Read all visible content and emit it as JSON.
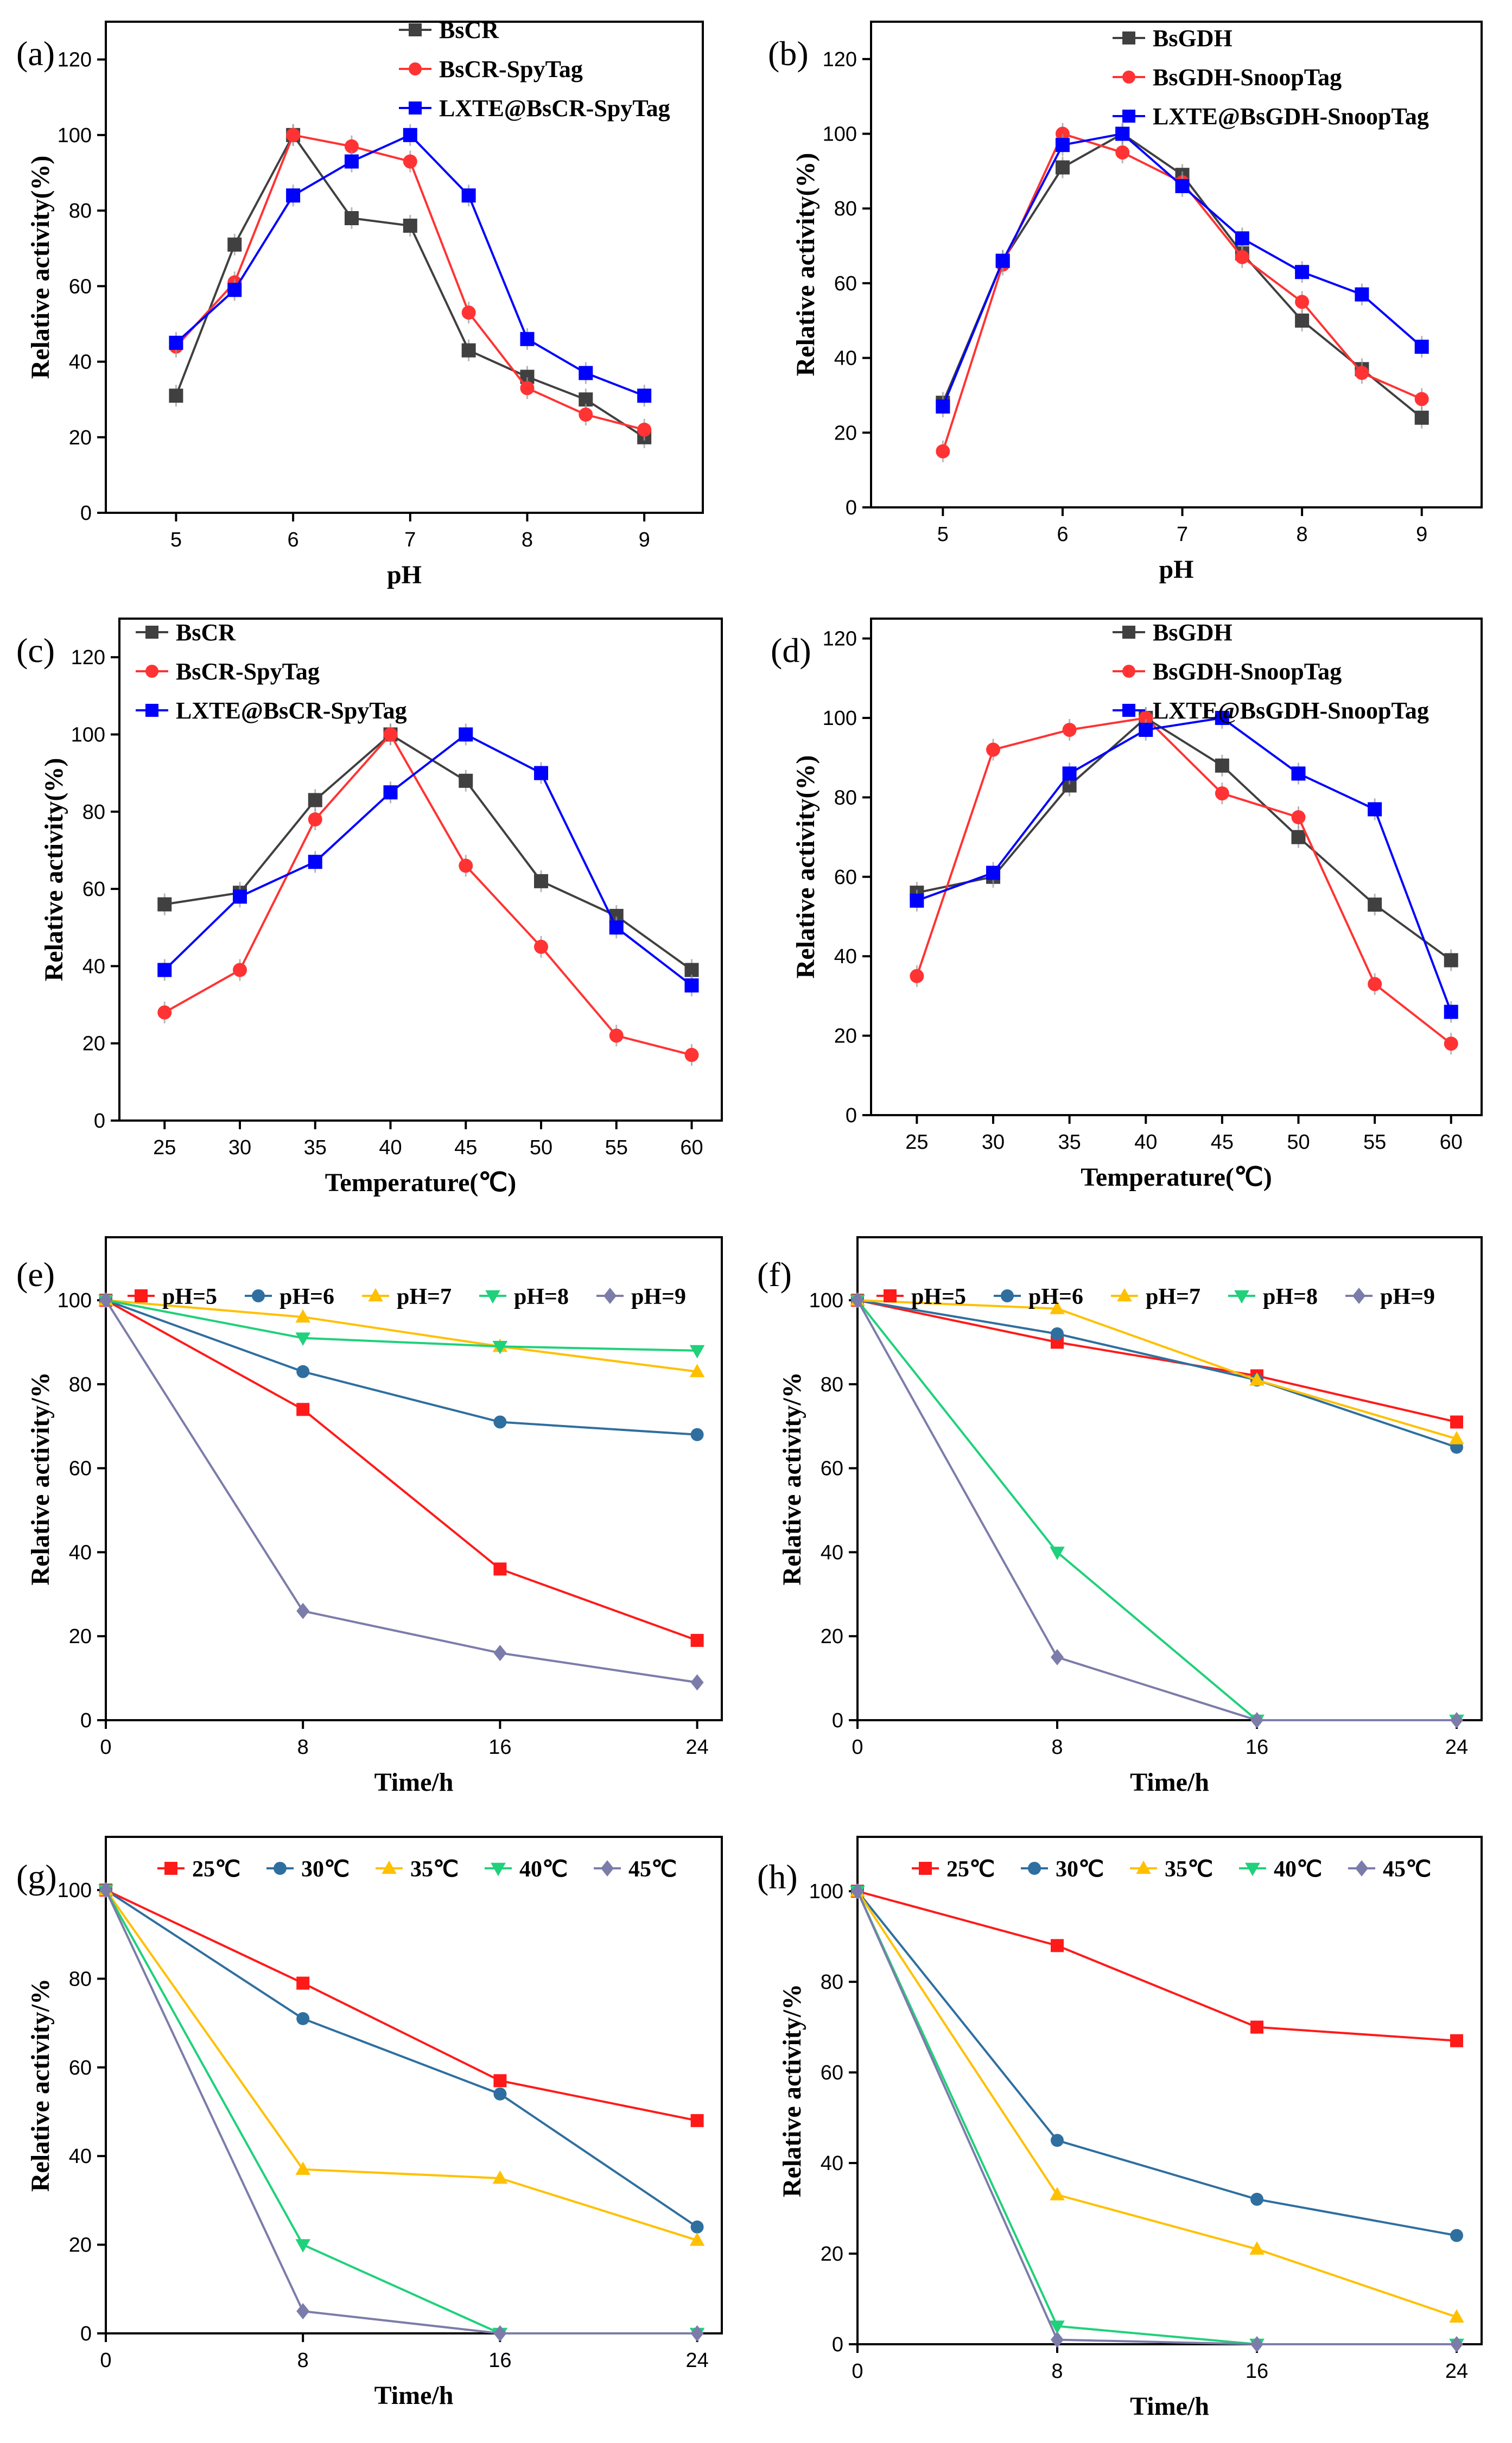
{
  "chart_data": [
    {
      "panel": "(a)",
      "type": "line",
      "xlabel": "pH",
      "ylabel": "Relative activity(%)",
      "xlim": [
        4.4,
        9.5
      ],
      "ylim": [
        0,
        130
      ],
      "xticks": [
        5,
        6,
        7,
        8,
        9
      ],
      "yticks": [
        0,
        20,
        40,
        60,
        80,
        100,
        120
      ],
      "x": [
        5,
        5.5,
        6,
        6.5,
        7,
        7.5,
        8,
        8.5,
        9
      ],
      "legend_pos": "top-right",
      "series": [
        {
          "name": "BsCR",
          "color": "#404040",
          "marker": "square",
          "values": [
            31,
            71,
            100,
            78,
            76,
            43,
            36,
            30,
            20
          ]
        },
        {
          "name": "BsCR-SpyTag",
          "color": "#ff3333",
          "marker": "circle",
          "values": [
            44,
            61,
            100,
            97,
            93,
            53,
            33,
            26,
            22
          ]
        },
        {
          "name": "LXTE@BsCR-SpyTag",
          "color": "#0000ff",
          "marker": "square",
          "values": [
            45,
            59,
            84,
            93,
            100,
            84,
            46,
            37,
            31
          ]
        }
      ]
    },
    {
      "panel": "(b)",
      "type": "line",
      "xlabel": "pH",
      "ylabel": "Relative activity(%)",
      "xlim": [
        4.4,
        9.5
      ],
      "ylim": [
        0,
        130
      ],
      "xticks": [
        5,
        6,
        7,
        8,
        9
      ],
      "yticks": [
        0,
        20,
        40,
        60,
        80,
        100,
        120
      ],
      "x": [
        5,
        5.5,
        6,
        6.5,
        7,
        7.5,
        8,
        8.5,
        9
      ],
      "legend_pos": "top-right",
      "series": [
        {
          "name": "BsGDH",
          "color": "#404040",
          "marker": "square",
          "values": [
            28,
            66,
            91,
            100,
            89,
            68,
            50,
            37,
            24
          ]
        },
        {
          "name": "BsGDH-SnoopTag",
          "color": "#ff3333",
          "marker": "circle",
          "values": [
            15,
            65,
            100,
            95,
            87,
            67,
            55,
            36,
            29
          ]
        },
        {
          "name": "LXTE@BsGDH-SnoopTag",
          "color": "#0000ff",
          "marker": "square",
          "values": [
            27,
            66,
            97,
            100,
            86,
            72,
            63,
            57,
            43
          ]
        }
      ]
    },
    {
      "panel": "(c)",
      "type": "line",
      "xlabel": "Temperature(℃)",
      "ylabel": "Relative activity(%)",
      "xlim": [
        22,
        62
      ],
      "ylim": [
        0,
        130
      ],
      "xticks": [
        25,
        30,
        35,
        40,
        45,
        50,
        55,
        60
      ],
      "yticks": [
        0,
        20,
        40,
        60,
        80,
        100,
        120
      ],
      "x": [
        25,
        30,
        35,
        40,
        45,
        50,
        55,
        60
      ],
      "legend_pos": "top-left",
      "series": [
        {
          "name": "BsCR",
          "color": "#404040",
          "marker": "square",
          "values": [
            56,
            59,
            83,
            100,
            88,
            62,
            53,
            39
          ]
        },
        {
          "name": "BsCR-SpyTag",
          "color": "#ff3333",
          "marker": "circle",
          "values": [
            28,
            39,
            78,
            100,
            66,
            45,
            22,
            17
          ]
        },
        {
          "name": "LXTE@BsCR-SpyTag",
          "color": "#0000ff",
          "marker": "square",
          "values": [
            39,
            58,
            67,
            85,
            100,
            90,
            50,
            35
          ]
        }
      ]
    },
    {
      "panel": "(d)",
      "type": "line",
      "xlabel": "Temperature(℃)",
      "ylabel": "Relative activity(%)",
      "xlim": [
        22,
        62
      ],
      "ylim": [
        0,
        125
      ],
      "xticks": [
        25,
        30,
        35,
        40,
        45,
        50,
        55,
        60
      ],
      "yticks": [
        0,
        20,
        40,
        60,
        80,
        100,
        120
      ],
      "x": [
        25,
        30,
        35,
        40,
        45,
        50,
        55,
        60
      ],
      "legend_pos": "top-right",
      "series": [
        {
          "name": "BsGDH",
          "color": "#404040",
          "marker": "square",
          "values": [
            56,
            60,
            83,
            100,
            88,
            70,
            53,
            39
          ]
        },
        {
          "name": "BsGDH-SnoopTag",
          "color": "#ff3333",
          "marker": "circle",
          "values": [
            35,
            92,
            97,
            100,
            81,
            75,
            33,
            18
          ]
        },
        {
          "name": "LXTE@BsGDH-SnoopTag",
          "color": "#0000ff",
          "marker": "square",
          "values": [
            54,
            61,
            86,
            97,
            100,
            86,
            77,
            26
          ]
        }
      ]
    },
    {
      "panel": "(e)",
      "type": "line",
      "xlabel": "Time/h",
      "ylabel": "Relative activity/%",
      "xlim": [
        0,
        25
      ],
      "ylim": [
        0,
        115
      ],
      "xticks": [
        0,
        8,
        16,
        24
      ],
      "yticks": [
        0,
        20,
        40,
        60,
        80,
        100
      ],
      "x": [
        0,
        8,
        16,
        24
      ],
      "legend_pos": "top",
      "series": [
        {
          "name": "pH=5",
          "color": "#ff1a1a",
          "marker": "square",
          "values": [
            100,
            74,
            36,
            19
          ]
        },
        {
          "name": "pH=6",
          "color": "#2f6f9f",
          "marker": "circle",
          "values": [
            100,
            83,
            71,
            68
          ]
        },
        {
          "name": "pH=7",
          "color": "#ffc000",
          "marker": "triangle-up",
          "values": [
            100,
            96,
            89,
            83
          ]
        },
        {
          "name": "pH=8",
          "color": "#1fd17a",
          "marker": "triangle-down",
          "values": [
            100,
            91,
            89,
            88
          ]
        },
        {
          "name": "pH=9",
          "color": "#7c7caa",
          "marker": "diamond",
          "values": [
            100,
            26,
            16,
            9
          ]
        }
      ]
    },
    {
      "panel": "(f)",
      "type": "line",
      "xlabel": "Time/h",
      "ylabel": "Relative activity/%",
      "xlim": [
        0,
        25
      ],
      "ylim": [
        0,
        115
      ],
      "xticks": [
        0,
        8,
        16,
        24
      ],
      "yticks": [
        0,
        20,
        40,
        60,
        80,
        100
      ],
      "x": [
        0,
        8,
        16,
        24
      ],
      "legend_pos": "top",
      "series": [
        {
          "name": "pH=5",
          "color": "#ff1a1a",
          "marker": "square",
          "values": [
            100,
            90,
            82,
            71
          ]
        },
        {
          "name": "pH=6",
          "color": "#2f6f9f",
          "marker": "circle",
          "values": [
            100,
            92,
            81,
            65
          ]
        },
        {
          "name": "pH=7",
          "color": "#ffc000",
          "marker": "triangle-up",
          "values": [
            100,
            98,
            81,
            67
          ]
        },
        {
          "name": "pH=8",
          "color": "#1fd17a",
          "marker": "triangle-down",
          "values": [
            100,
            40,
            0,
            0
          ]
        },
        {
          "name": "pH=9",
          "color": "#7c7caa",
          "marker": "diamond",
          "values": [
            100,
            15,
            0,
            0
          ]
        }
      ]
    },
    {
      "panel": "(g)",
      "type": "line",
      "xlabel": "Time/h",
      "ylabel": "Relative activity/%",
      "xlim": [
        0,
        25
      ],
      "ylim": [
        0,
        112
      ],
      "xticks": [
        0,
        8,
        16,
        24
      ],
      "yticks": [
        0,
        20,
        40,
        60,
        80,
        100
      ],
      "x": [
        0,
        8,
        16,
        24
      ],
      "legend_pos": "top",
      "series": [
        {
          "name": "25℃",
          "color": "#ff1a1a",
          "marker": "square",
          "values": [
            100,
            79,
            57,
            48
          ]
        },
        {
          "name": "30℃",
          "color": "#2f6f9f",
          "marker": "circle",
          "values": [
            100,
            71,
            54,
            24
          ]
        },
        {
          "name": "35℃",
          "color": "#ffc000",
          "marker": "triangle-up",
          "values": [
            100,
            37,
            35,
            21
          ]
        },
        {
          "name": "40℃",
          "color": "#1fd17a",
          "marker": "triangle-down",
          "values": [
            100,
            20,
            0,
            0
          ]
        },
        {
          "name": "45℃",
          "color": "#7c7caa",
          "marker": "diamond",
          "values": [
            100,
            5,
            0,
            0
          ]
        }
      ]
    },
    {
      "panel": "(h)",
      "type": "line",
      "xlabel": "Time/h",
      "ylabel": "Relative activity/%",
      "xlim": [
        0,
        25
      ],
      "ylim": [
        0,
        112
      ],
      "xticks": [
        0,
        8,
        16,
        24
      ],
      "yticks": [
        0,
        20,
        40,
        60,
        80,
        100
      ],
      "x": [
        0,
        8,
        16,
        24
      ],
      "legend_pos": "top",
      "series": [
        {
          "name": "25℃",
          "color": "#ff1a1a",
          "marker": "square",
          "values": [
            100,
            88,
            70,
            67
          ]
        },
        {
          "name": "30℃",
          "color": "#2f6f9f",
          "marker": "circle",
          "values": [
            100,
            45,
            32,
            24
          ]
        },
        {
          "name": "35℃",
          "color": "#ffc000",
          "marker": "triangle-up",
          "values": [
            100,
            33,
            21,
            6
          ]
        },
        {
          "name": "40℃",
          "color": "#1fd17a",
          "marker": "triangle-down",
          "values": [
            100,
            4,
            0,
            0
          ]
        },
        {
          "name": "45℃",
          "color": "#7c7caa",
          "marker": "diamond",
          "values": [
            100,
            1,
            0,
            0
          ]
        }
      ]
    }
  ]
}
